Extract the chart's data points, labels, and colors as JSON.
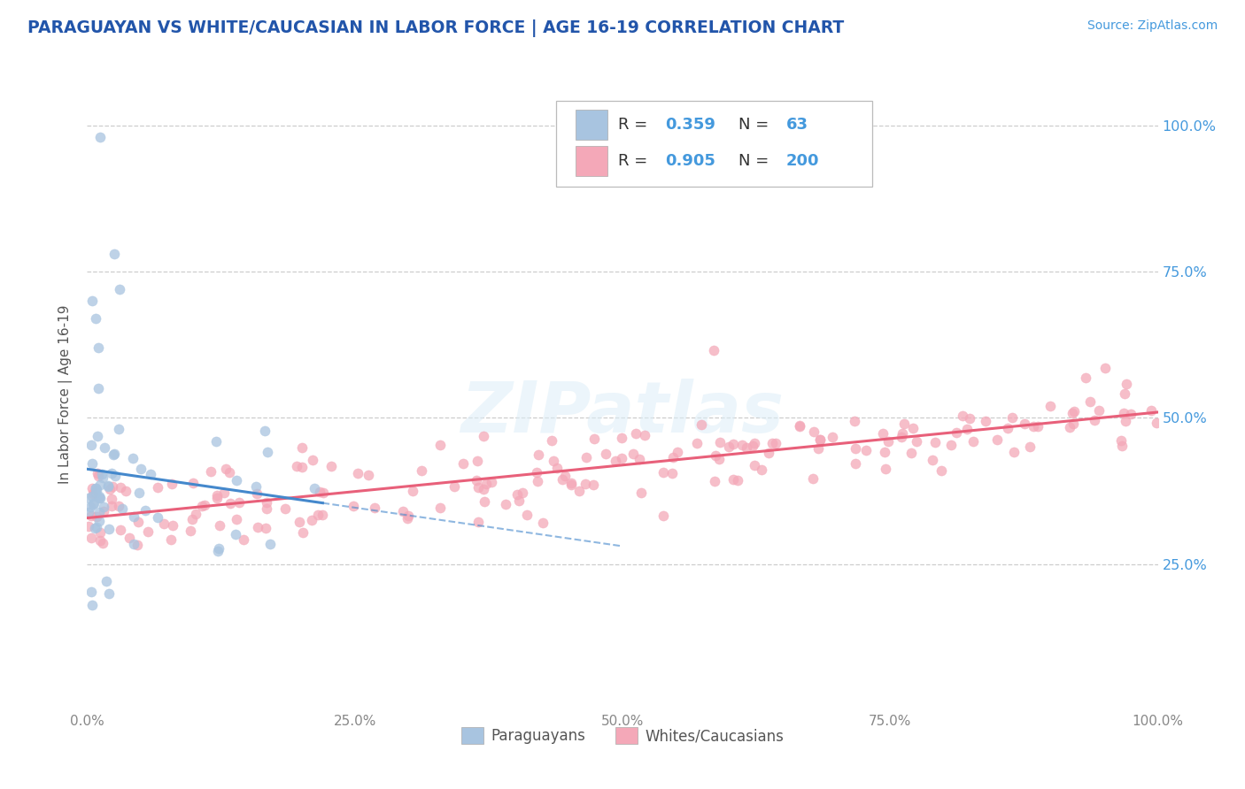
{
  "title": "PARAGUAYAN VS WHITE/CAUCASIAN IN LABOR FORCE | AGE 16-19 CORRELATION CHART",
  "source_text": "Source: ZipAtlas.com",
  "ylabel": "In Labor Force | Age 16-19",
  "xlim": [
    0.0,
    1.0
  ],
  "ylim": [
    0.0,
    1.08
  ],
  "xtick_labels": [
    "0.0%",
    "25.0%",
    "50.0%",
    "75.0%",
    "100.0%"
  ],
  "xtick_positions": [
    0.0,
    0.25,
    0.5,
    0.75,
    1.0
  ],
  "ytick_labels": [
    "25.0%",
    "50.0%",
    "75.0%",
    "100.0%"
  ],
  "ytick_positions": [
    0.25,
    0.5,
    0.75,
    1.0
  ],
  "paraguayan_color": "#a8c4e0",
  "white_color": "#f4a8b8",
  "paraguayan_R": 0.359,
  "paraguayan_N": 63,
  "white_R": 0.905,
  "white_N": 200,
  "watermark": "ZIPatlas",
  "background_color": "#ffffff",
  "grid_color": "#c8c8c8",
  "title_color": "#2255aa",
  "source_color": "#4499dd",
  "paraguayan_line_color": "#4488cc",
  "white_line_color": "#e8607a",
  "tick_color_blue": "#4499dd",
  "tick_color_gray": "#888888"
}
